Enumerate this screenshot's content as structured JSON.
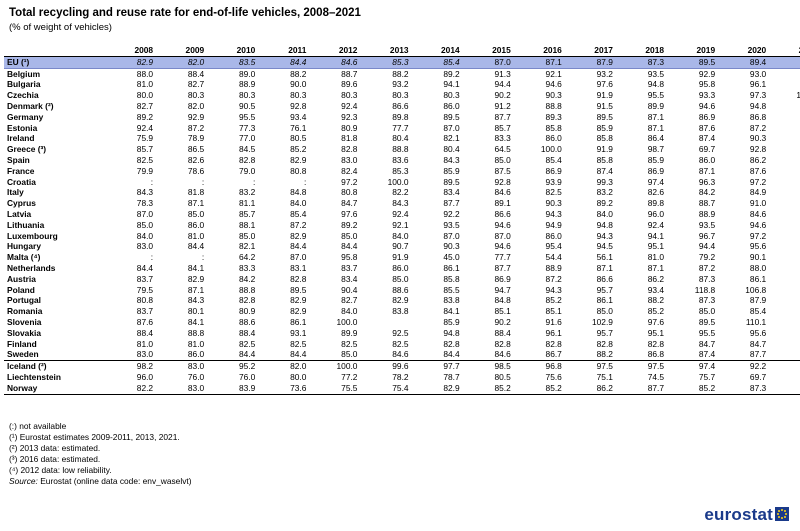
{
  "header": {
    "title": "Total recycling and reuse rate for end-of-life vehicles, 2008–2021",
    "subtitle": "(% of weight of vehicles)"
  },
  "table": {
    "years": [
      "2008",
      "2009",
      "2010",
      "2011",
      "2012",
      "2013",
      "2014",
      "2015",
      "2016",
      "2017",
      "2018",
      "2019",
      "2020",
      "2021"
    ],
    "eu": {
      "country": "EU (¹)",
      "values": [
        "82.9",
        "82.0",
        "83.5",
        "84.4",
        "84.6",
        "85.3",
        "85.4",
        "87.0",
        "87.1",
        "87.9",
        "87.3",
        "89.5",
        "89.4",
        "88.1"
      ]
    },
    "rows": [
      {
        "country": "Belgium",
        "values": [
          "88.0",
          "88.4",
          "89.0",
          "88.2",
          "88.7",
          "88.2",
          "89.2",
          "91.3",
          "92.1",
          "93.2",
          "93.5",
          "92.9",
          "93.0",
          "93.5"
        ]
      },
      {
        "country": "Bulgaria",
        "values": [
          "81.0",
          "82.7",
          "88.9",
          "90.0",
          "89.6",
          "93.2",
          "94.1",
          "94.4",
          "94.6",
          "97.6",
          "94.8",
          "95.8",
          "96.1",
          "95.6"
        ]
      },
      {
        "country": "Czechia",
        "values": [
          "80.0",
          "80.3",
          "80.3",
          "80.3",
          "80.3",
          "80.3",
          "80.3",
          "90.2",
          "90.3",
          "91.9",
          "95.5",
          "93.3",
          "97.3",
          "102.2"
        ]
      },
      {
        "country": "Denmark (²)",
        "values": [
          "82.7",
          "82.0",
          "90.5",
          "92.8",
          "92.4",
          "86.6",
          "86.0",
          "91.2",
          "88.8",
          "91.5",
          "89.9",
          "94.6",
          "94.8",
          "82.5"
        ]
      },
      {
        "country": "Germany",
        "values": [
          "89.2",
          "92.9",
          "95.5",
          "93.4",
          "92.3",
          "89.8",
          "89.5",
          "87.7",
          "89.3",
          "89.5",
          "87.1",
          "86.9",
          "86.8",
          "90.0"
        ]
      },
      {
        "country": "Estonia",
        "values": [
          "92.4",
          "87.2",
          "77.3",
          "76.1",
          "80.9",
          "77.7",
          "87.0",
          "85.7",
          "85.8",
          "85.9",
          "87.1",
          "87.6",
          "87.2",
          "85.5"
        ]
      },
      {
        "country": "Ireland",
        "values": [
          "75.9",
          "78.9",
          "77.0",
          "80.5",
          "81.8",
          "80.4",
          "82.1",
          "83.3",
          "86.0",
          "85.8",
          "86.4",
          "87.4",
          "90.3",
          "87.8"
        ]
      },
      {
        "country": "Greece (³)",
        "values": [
          "85.7",
          "86.5",
          "84.5",
          "85.2",
          "82.8",
          "88.8",
          "80.4",
          "64.5",
          "100.0",
          "91.9",
          "98.7",
          "69.7",
          "92.8",
          ""
        ]
      },
      {
        "country": "Spain",
        "values": [
          "82.5",
          "82.6",
          "82.8",
          "82.9",
          "83.0",
          "83.6",
          "84.3",
          "85.0",
          "85.4",
          "85.8",
          "85.9",
          "86.0",
          "86.2",
          "86.3"
        ]
      },
      {
        "country": "France",
        "values": [
          "79.9",
          "78.6",
          "79.0",
          "80.8",
          "82.4",
          "85.3",
          "85.9",
          "87.5",
          "86.9",
          "87.4",
          "86.9",
          "87.1",
          "87.6",
          "87.6"
        ]
      },
      {
        "country": "Croatia",
        "values": [
          ":",
          ":",
          ":",
          ":",
          "97.2",
          "100.0",
          "89.5",
          "92.8",
          "93.9",
          "99.3",
          "97.4",
          "96.3",
          "97.2",
          "98.0"
        ]
      },
      {
        "country": "Italy",
        "values": [
          "84.3",
          "81.8",
          "83.2",
          "84.8",
          "80.8",
          "82.2",
          "83.4",
          "84.6",
          "82.5",
          "83.2",
          "82.6",
          "84.2",
          "84.9",
          "84.3"
        ]
      },
      {
        "country": "Cyprus",
        "values": [
          "78.3",
          "87.1",
          "81.1",
          "84.0",
          "84.7",
          "84.3",
          "87.7",
          "89.1",
          "90.3",
          "89.2",
          "89.8",
          "88.7",
          "91.0",
          ""
        ]
      },
      {
        "country": "Latvia",
        "values": [
          "87.0",
          "85.0",
          "85.7",
          "85.4",
          "97.6",
          "92.4",
          "92.2",
          "86.6",
          "94.3",
          "84.0",
          "96.0",
          "88.9",
          "84.6",
          "85.7"
        ]
      },
      {
        "country": "Lithuania",
        "values": [
          "85.0",
          "86.0",
          "88.1",
          "87.2",
          "89.2",
          "92.1",
          "93.5",
          "94.6",
          "94.9",
          "94.8",
          "92.4",
          "93.5",
          "94.6",
          "94.5"
        ]
      },
      {
        "country": "Luxembourg",
        "values": [
          "84.0",
          "81.0",
          "85.0",
          "82.9",
          "85.0",
          "84.0",
          "87.0",
          "87.0",
          "86.0",
          "94.3",
          "94.1",
          "96.7",
          "97.2",
          "97.1"
        ]
      },
      {
        "country": "Hungary",
        "values": [
          "83.0",
          "84.4",
          "82.1",
          "84.4",
          "84.4",
          "90.7",
          "90.3",
          "94.6",
          "95.4",
          "94.5",
          "95.1",
          "94.4",
          "95.6",
          "97.1"
        ]
      },
      {
        "country": "Malta (⁴)",
        "values": [
          ":",
          ":",
          "64.2",
          "87.0",
          "95.8",
          "91.9",
          "45.0",
          "77.7",
          "54.4",
          "56.1",
          "81.0",
          "79.2",
          "90.1",
          "80.8"
        ]
      },
      {
        "country": "Netherlands",
        "values": [
          "84.4",
          "84.1",
          "83.3",
          "83.1",
          "83.7",
          "86.0",
          "86.1",
          "87.7",
          "88.9",
          "87.1",
          "87.1",
          "87.2",
          "88.0",
          "87.3"
        ]
      },
      {
        "country": "Austria",
        "values": [
          "83.7",
          "82.9",
          "84.2",
          "82.8",
          "83.4",
          "85.0",
          "85.8",
          "86.9",
          "87.2",
          "86.6",
          "86.2",
          "87.3",
          "86.1",
          "85.8"
        ]
      },
      {
        "country": "Poland",
        "values": [
          "79.5",
          "87.1",
          "88.8",
          "89.5",
          "90.4",
          "88.6",
          "85.5",
          "94.7",
          "94.3",
          "95.7",
          "93.4",
          "118.8",
          "106.8",
          "94.6"
        ]
      },
      {
        "country": "Portugal",
        "values": [
          "80.8",
          "84.3",
          "82.8",
          "82.9",
          "82.7",
          "82.9",
          "83.8",
          "84.8",
          "85.2",
          "86.1",
          "88.2",
          "87.3",
          "87.9",
          ""
        ]
      },
      {
        "country": "Romania",
        "values": [
          "83.7",
          "80.1",
          "80.9",
          "82.9",
          "84.0",
          "83.8",
          "84.1",
          "85.1",
          "85.1",
          "85.0",
          "85.2",
          "85.0",
          "85.4",
          ""
        ]
      },
      {
        "country": "Slovenia",
        "values": [
          "87.6",
          "84.1",
          "88.6",
          "86.1",
          "100.0",
          "",
          "85.9",
          "90.2",
          "91.6",
          "102.9",
          "97.6",
          "89.5",
          "110.1",
          "90.8"
        ]
      },
      {
        "country": "Slovakia",
        "values": [
          "88.4",
          "88.8",
          "88.4",
          "93.1",
          "89.9",
          "92.5",
          "94.8",
          "88.4",
          "96.1",
          "95.7",
          "95.1",
          "95.5",
          "95.6",
          "95.6"
        ]
      },
      {
        "country": "Finland",
        "values": [
          "81.0",
          "81.0",
          "82.5",
          "82.5",
          "82.5",
          "82.5",
          "82.8",
          "82.8",
          "82.8",
          "82.8",
          "82.8",
          "84.7",
          "84.7",
          "84.7"
        ]
      },
      {
        "country": "Sweden",
        "values": [
          "83.0",
          "86.0",
          "84.4",
          "84.4",
          "85.0",
          "84.6",
          "84.4",
          "84.6",
          "86.7",
          "88.2",
          "86.8",
          "87.4",
          "87.7",
          "87.9"
        ]
      },
      {
        "country": "Iceland (²)",
        "values": [
          "98.2",
          "83.0",
          "95.2",
          "82.0",
          "100.0",
          "99.6",
          "97.7",
          "98.5",
          "96.8",
          "97.5",
          "97.5",
          "97.4",
          "92.2",
          ""
        ]
      },
      {
        "country": "Liechtenstein",
        "values": [
          "96.0",
          "76.0",
          "76.0",
          "80.0",
          "77.2",
          "78.2",
          "78.7",
          "80.5",
          "75.6",
          "75.1",
          "74.5",
          "75.7",
          "69.7",
          "74.3"
        ]
      },
      {
        "country": "Norway",
        "values": [
          "82.2",
          "83.0",
          "83.9",
          "73.6",
          "75.5",
          "75.4",
          "82.9",
          "85.2",
          "85.2",
          "86.2",
          "87.7",
          "85.2",
          "87.3",
          "86.9"
        ]
      }
    ]
  },
  "notes": {
    "lines": [
      "(:) not available",
      "(¹) Eurostat estimates 2009-2011, 2013, 2021.",
      "(²) 2013 data: estimated.",
      "(³) 2016 data: estimated.",
      "(⁴) 2012 data: low reliability."
    ],
    "source_label": "Source:",
    "source_text": "Eurostat (online data code: env_waselvt)"
  },
  "logo": {
    "text": "eurostat"
  }
}
